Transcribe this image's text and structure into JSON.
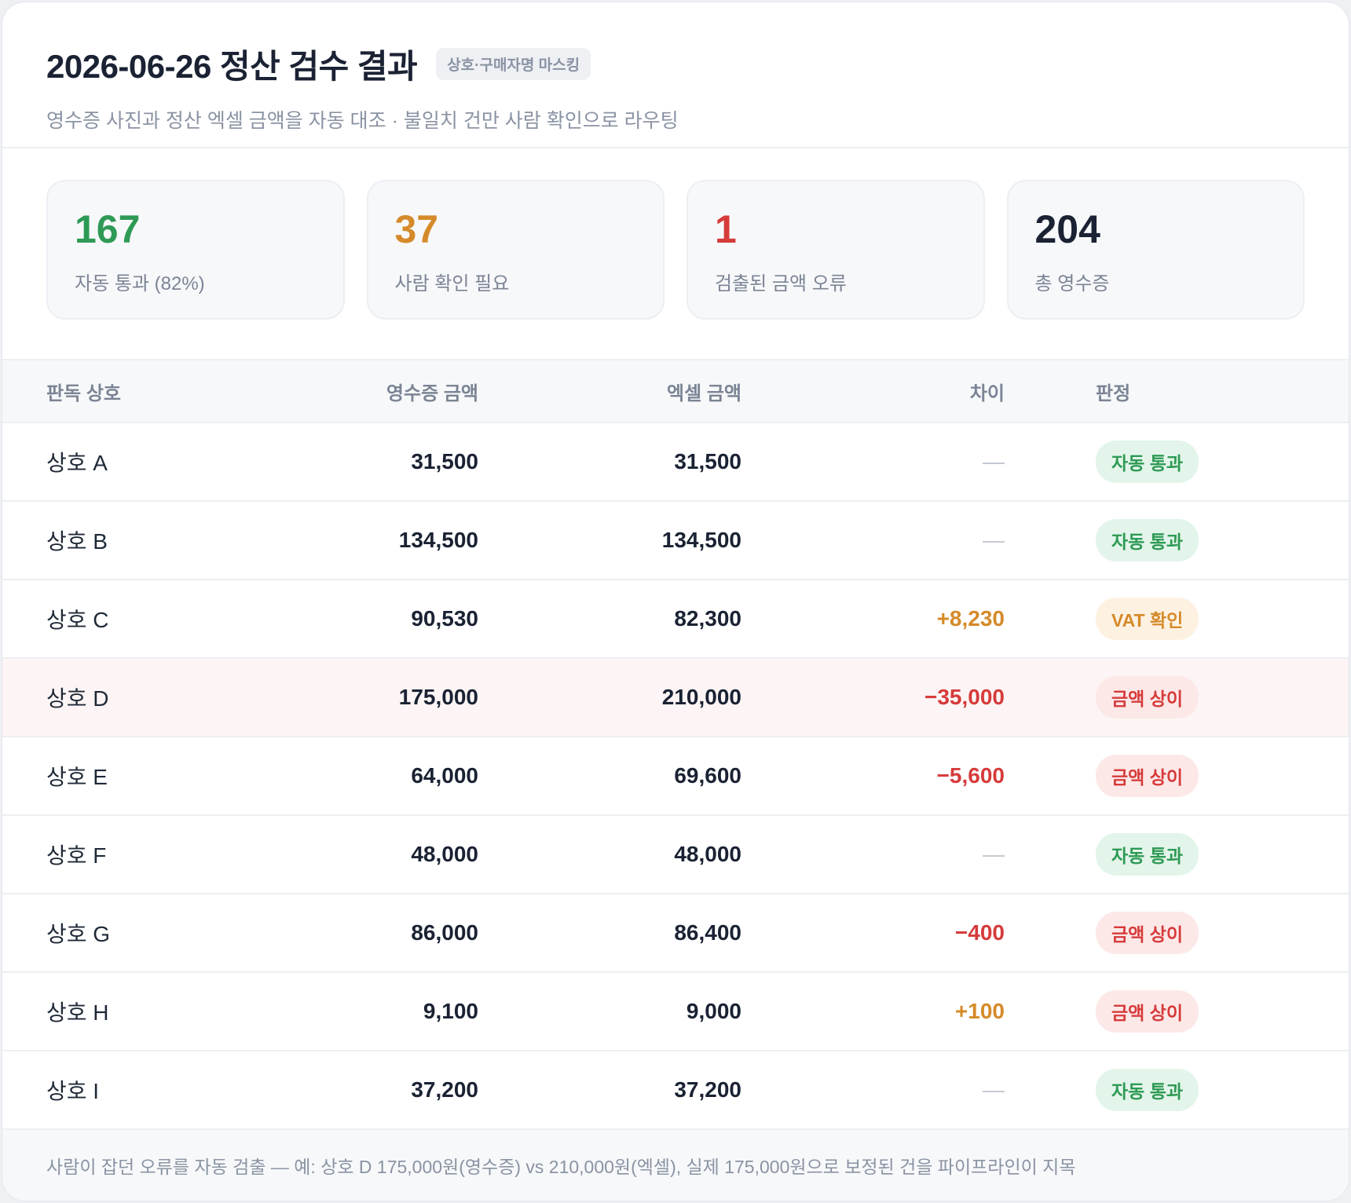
{
  "header": {
    "title": "2026-06-26 정산 검수 결과",
    "mask_badge": "상호·구매자명 마스킹",
    "subtitle": "영수증 사진과 정산 엑셀 금액을 자동 대조 · 불일치 건만 사람 확인으로 라우팅"
  },
  "stats": [
    {
      "value": "167",
      "label": "자동 통과 (82%)",
      "color": "#2e9a55"
    },
    {
      "value": "37",
      "label": "사람 확인 필요",
      "color": "#d58a2a"
    },
    {
      "value": "1",
      "label": "검출된 금액 오류",
      "color": "#d63b3b"
    },
    {
      "value": "204",
      "label": "총 영수증",
      "color": "#1a2233"
    }
  ],
  "table": {
    "headers": {
      "name": "판독 상호",
      "receipt": "영수증 금액",
      "excel": "엑셀 금액",
      "diff": "차이",
      "verdict": "판정"
    },
    "rows": [
      {
        "name": "상호 A",
        "receipt": "31,500",
        "excel": "31,500",
        "diff": "—",
        "verdict": "자동 통과"
      },
      {
        "name": "상호 B",
        "receipt": "134,500",
        "excel": "134,500",
        "diff": "—",
        "verdict": "자동 통과"
      },
      {
        "name": "상호 C",
        "receipt": "90,530",
        "excel": "82,300",
        "diff": "+8,230",
        "verdict": "VAT 확인"
      },
      {
        "name": "상호 D",
        "receipt": "175,000",
        "excel": "210,000",
        "diff": "−35,000",
        "verdict": "금액 상이"
      },
      {
        "name": "상호 E",
        "receipt": "64,000",
        "excel": "69,600",
        "diff": "−5,600",
        "verdict": "금액 상이"
      },
      {
        "name": "상호 F",
        "receipt": "48,000",
        "excel": "48,000",
        "diff": "—",
        "verdict": "자동 통과"
      },
      {
        "name": "상호 G",
        "receipt": "86,000",
        "excel": "86,400",
        "diff": "−400",
        "verdict": "금액 상이"
      },
      {
        "name": "상호 H",
        "receipt": "9,100",
        "excel": "9,000",
        "diff": "+100",
        "verdict": "금액 상이"
      },
      {
        "name": "상호 I",
        "receipt": "37,200",
        "excel": "37,200",
        "diff": "—",
        "verdict": "자동 통과"
      }
    ]
  },
  "footer": {
    "note": "사람이 잡던 오류를 자동 검출 — 예: 상호 D 175,000원(영수증) vs 210,000원(엑셀), 실제 175,000원으로 보정된 건을 파이프라인이 지목"
  }
}
